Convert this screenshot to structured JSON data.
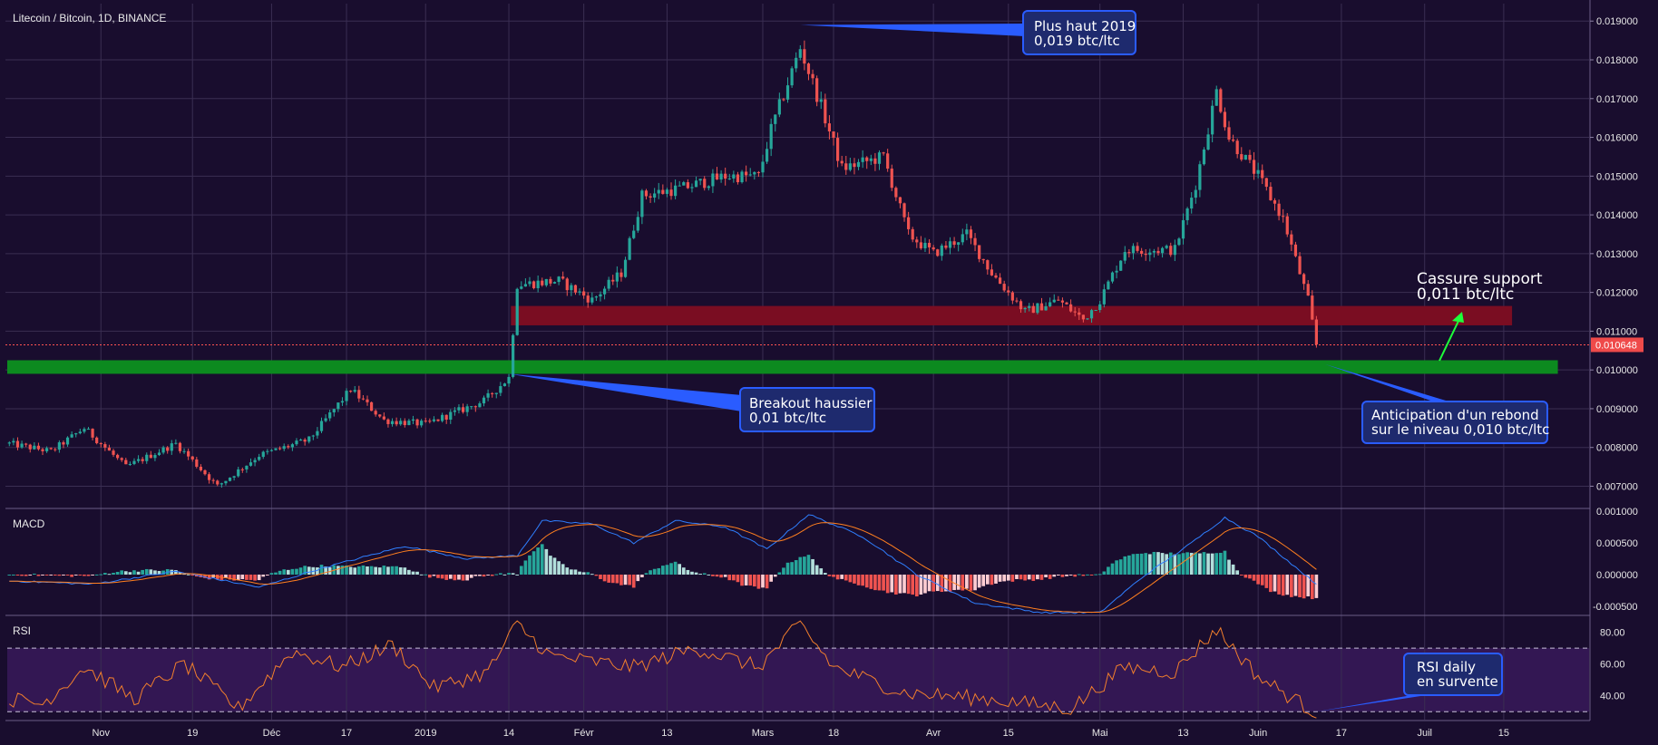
{
  "chart_data": [
    {
      "type": "candlestick",
      "title": "Litecoin / Bitcoin, 1D, BINANCE",
      "unit": "btc/ltc",
      "y_ticks": [
        "0.019000",
        "0.018000",
        "0.017000",
        "0.016000",
        "0.015000",
        "0.014000",
        "0.013000",
        "0.012000",
        "0.011000",
        "0.010000",
        "0.009000",
        "0.008000",
        "0.007000"
      ],
      "ylim": [
        0.00645,
        0.01945
      ],
      "last_price_label": "0.010648",
      "last_price": 0.010648,
      "x_ticks": [
        "Nov",
        "19",
        "Déc",
        "17",
        "2019",
        "14",
        "Févr",
        "13",
        "Mars",
        "18",
        "Avr",
        "15",
        "Mai",
        "13",
        "Juin",
        "17",
        "Juil",
        "15"
      ],
      "anchors": [
        {
          "day": 0,
          "value": 0.0081
        },
        {
          "day": 10,
          "value": 0.0079
        },
        {
          "day": 18,
          "value": 0.0085
        },
        {
          "day": 28,
          "value": 0.0075
        },
        {
          "day": 40,
          "value": 0.0081
        },
        {
          "day": 50,
          "value": 0.007
        },
        {
          "day": 60,
          "value": 0.0078
        },
        {
          "day": 72,
          "value": 0.0082
        },
        {
          "day": 82,
          "value": 0.0095
        },
        {
          "day": 90,
          "value": 0.0087
        },
        {
          "day": 100,
          "value": 0.0086
        },
        {
          "day": 114,
          "value": 0.0092
        },
        {
          "day": 120,
          "value": 0.0098
        },
        {
          "day": 122,
          "value": 0.0122
        },
        {
          "day": 132,
          "value": 0.0123
        },
        {
          "day": 140,
          "value": 0.0118
        },
        {
          "day": 147,
          "value": 0.0125
        },
        {
          "day": 152,
          "value": 0.0145
        },
        {
          "day": 162,
          "value": 0.0147
        },
        {
          "day": 172,
          "value": 0.015
        },
        {
          "day": 180,
          "value": 0.015
        },
        {
          "day": 183,
          "value": 0.0162
        },
        {
          "day": 190,
          "value": 0.0183
        },
        {
          "day": 195,
          "value": 0.0168
        },
        {
          "day": 200,
          "value": 0.0152
        },
        {
          "day": 210,
          "value": 0.0155
        },
        {
          "day": 216,
          "value": 0.0135
        },
        {
          "day": 222,
          "value": 0.013
        },
        {
          "day": 230,
          "value": 0.0135
        },
        {
          "day": 236,
          "value": 0.0125
        },
        {
          "day": 244,
          "value": 0.0115
        },
        {
          "day": 252,
          "value": 0.0118
        },
        {
          "day": 258,
          "value": 0.0113
        },
        {
          "day": 262,
          "value": 0.0118
        },
        {
          "day": 268,
          "value": 0.0131
        },
        {
          "day": 280,
          "value": 0.0131
        },
        {
          "day": 285,
          "value": 0.0148
        },
        {
          "day": 290,
          "value": 0.0172
        },
        {
          "day": 293,
          "value": 0.016
        },
        {
          "day": 300,
          "value": 0.015
        },
        {
          "day": 306,
          "value": 0.0139
        },
        {
          "day": 312,
          "value": 0.0118
        },
        {
          "day": 314,
          "value": 0.010648
        }
      ],
      "zones": [
        {
          "name": "support",
          "from": 0.0099,
          "to": 0.01025,
          "color": "#0c8a1f",
          "start_day": 0,
          "end_day": 372
        },
        {
          "name": "broken support",
          "from": 0.01115,
          "to": 0.01165,
          "color": "#7a0d22",
          "start_day": 121,
          "end_day": 361
        }
      ],
      "annotations": [
        {
          "lines": [
            "Plus haut 2019",
            "0,019 btc/ltc"
          ],
          "target_day": 190,
          "target_value": 0.0189
        },
        {
          "lines": [
            "Breakout haussier",
            "0,01 btc/ltc"
          ],
          "target_day": 120,
          "target_value": 0.0099
        },
        {
          "lines": [
            "Cassure support",
            "0,011 btc/ltc"
          ]
        },
        {
          "lines": [
            "Anticipation d'un rebond",
            "sur le niveau 0,010 btc/ltc"
          ],
          "target_day": 316,
          "target_value": 0.01015
        }
      ]
    },
    {
      "type": "line",
      "title": "MACD",
      "y_ticks": [
        "0.001000",
        "0.000500",
        "0.000000",
        "-0.000500"
      ],
      "ylim": [
        -0.00063,
        0.00103
      ],
      "series": [
        {
          "name": "MACD",
          "color": "#2f7fff"
        },
        {
          "name": "Signal",
          "color": "#ff7f1f"
        }
      ],
      "macd_anchors": [
        {
          "day": 0,
          "value": -0.0001
        },
        {
          "day": 20,
          "value": -0.00015
        },
        {
          "day": 40,
          "value": 5e-05
        },
        {
          "day": 60,
          "value": -0.0002
        },
        {
          "day": 75,
          "value": 0.0001
        },
        {
          "day": 95,
          "value": 0.00045
        },
        {
          "day": 110,
          "value": 0.00025
        },
        {
          "day": 122,
          "value": 0.0003
        },
        {
          "day": 128,
          "value": 0.00085
        },
        {
          "day": 140,
          "value": 0.0008
        },
        {
          "day": 150,
          "value": 0.0005
        },
        {
          "day": 160,
          "value": 0.00085
        },
        {
          "day": 172,
          "value": 0.00075
        },
        {
          "day": 182,
          "value": 0.0004
        },
        {
          "day": 192,
          "value": 0.00095
        },
        {
          "day": 205,
          "value": 0.0006
        },
        {
          "day": 218,
          "value": 0.0
        },
        {
          "day": 232,
          "value": -0.00045
        },
        {
          "day": 248,
          "value": -0.0006
        },
        {
          "day": 262,
          "value": -0.0006
        },
        {
          "day": 272,
          "value": -5e-05
        },
        {
          "day": 284,
          "value": 0.0005
        },
        {
          "day": 292,
          "value": 0.0009
        },
        {
          "day": 300,
          "value": 0.0006
        },
        {
          "day": 314,
          "value": -0.00015
        }
      ]
    },
    {
      "type": "line",
      "title": "RSI",
      "y_ticks": [
        "80.00",
        "60.00",
        "40.00"
      ],
      "ylim": [
        25,
        90
      ],
      "overbought": 70,
      "oversold": 30,
      "series": [
        {
          "name": "RSI",
          "color": "#f27f2c"
        }
      ],
      "rsi_anchors": [
        {
          "day": 0,
          "value": 38
        },
        {
          "day": 8,
          "value": 35
        },
        {
          "day": 18,
          "value": 58
        },
        {
          "day": 30,
          "value": 38
        },
        {
          "day": 42,
          "value": 60
        },
        {
          "day": 55,
          "value": 32
        },
        {
          "day": 68,
          "value": 68
        },
        {
          "day": 80,
          "value": 58
        },
        {
          "day": 92,
          "value": 72
        },
        {
          "day": 102,
          "value": 45
        },
        {
          "day": 115,
          "value": 55
        },
        {
          "day": 122,
          "value": 85
        },
        {
          "day": 130,
          "value": 65
        },
        {
          "day": 150,
          "value": 58
        },
        {
          "day": 165,
          "value": 70
        },
        {
          "day": 180,
          "value": 58
        },
        {
          "day": 190,
          "value": 85
        },
        {
          "day": 198,
          "value": 58
        },
        {
          "day": 215,
          "value": 42
        },
        {
          "day": 235,
          "value": 38
        },
        {
          "day": 255,
          "value": 32
        },
        {
          "day": 268,
          "value": 58
        },
        {
          "day": 280,
          "value": 55
        },
        {
          "day": 290,
          "value": 82
        },
        {
          "day": 300,
          "value": 52
        },
        {
          "day": 314,
          "value": 29
        }
      ],
      "annotation": {
        "lines": [
          "RSI daily",
          "en survente"
        ],
        "target_day": 314,
        "target_value": 30
      }
    }
  ],
  "colors": {
    "background": "#190d2e",
    "grid": "#3a2e52",
    "up": "#26a69a",
    "down": "#ef5350",
    "price_line": "#ff5252",
    "rsi_band": "#3a1a5c",
    "annotation_fill": "#1e2a6e",
    "annotation_border": "#2a5cff",
    "arrow_green": "#1eff3a"
  }
}
